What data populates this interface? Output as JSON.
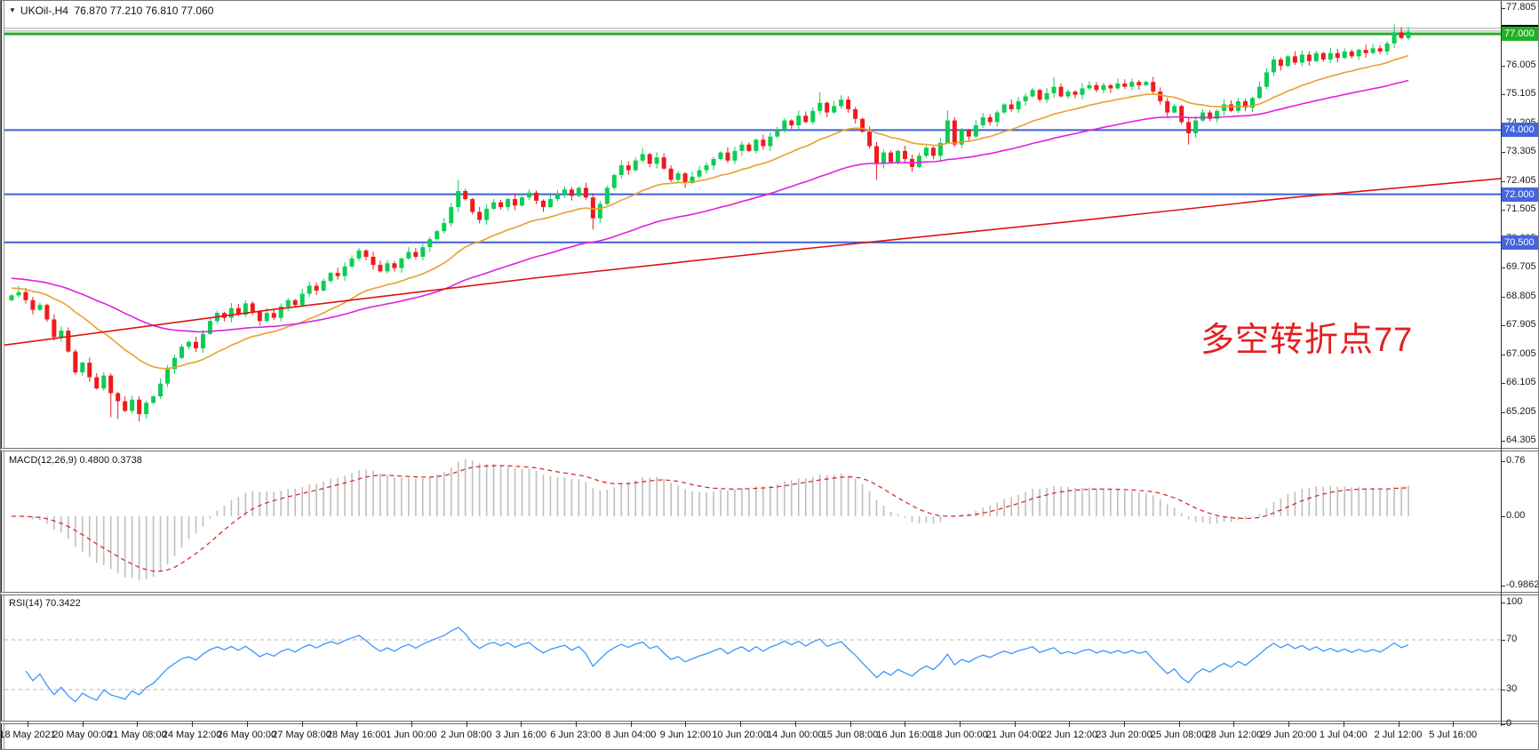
{
  "header": {
    "dropdown_icon": "▼",
    "symbol": "UKOil-,H4",
    "ohlc": "76.870 77.210 76.810 77.060"
  },
  "annotation": {
    "text": "多空转折点77",
    "color": "#e32020"
  },
  "price_axis": {
    "labels": [
      "77.805",
      "76.905",
      "76.005",
      "75.105",
      "74.205",
      "73.305",
      "72.405",
      "71.505",
      "70.605",
      "69.705",
      "68.805",
      "67.905",
      "67.005",
      "66.105",
      "65.205",
      "64.305"
    ]
  },
  "time_axis": {
    "labels": [
      "18 May 2021",
      "20 May 00:00",
      "21 May 08:00",
      "24 May 12:00",
      "26 May 00:00",
      "27 May 08:00",
      "28 May 16:00",
      "1 Jun 00:00",
      "2 Jun 08:00",
      "3 Jun 16:00",
      "6 Jun 23:00",
      "8 Jun 04:00",
      "9 Jun 12:00",
      "10 Jun 20:00",
      "14 Jun 00:00",
      "15 Jun 08:00",
      "16 Jun 16:00",
      "18 Jun 00:00",
      "21 Jun 04:00",
      "22 Jun 12:00",
      "23 Jun 20:00",
      "25 Jun 08:00",
      "28 Jun 12:00",
      "29 Jun 20:00",
      "1 Jul 04:00",
      "2 Jul 12:00",
      "5 Jul 16:00"
    ]
  },
  "macd_panel": {
    "label": "MACD(12,26,9) 0.4800 0.3738",
    "fast": 12,
    "slow": 26,
    "signal": 9,
    "axis": [
      {
        "text": "0.76",
        "value": 0.76
      },
      {
        "text": "0.00",
        "value": 0.0
      },
      {
        "text": "-0.9862",
        "value": -0.9862
      }
    ],
    "hist_color": "#bfbfbf",
    "signal_color": "#d42020"
  },
  "rsi_panel": {
    "label": "RSI(14) 70.3422",
    "period": 14,
    "axis": [
      {
        "text": "100",
        "value": 100
      },
      {
        "text": "70",
        "value": 70
      },
      {
        "text": "30",
        "value": 30
      },
      {
        "text": "0",
        "value": 2
      }
    ],
    "levels": [
      70,
      30
    ],
    "line_color": "#3b96ff",
    "level_color": "#b5b5b5"
  },
  "chart_data": {
    "type": "candlestick",
    "symbol": "UKOil-",
    "timeframe": "H4",
    "title": "UKOil- H4 candlestick chart with MA lines, MACD(12,26,9) and RSI(14)",
    "price_range": [
      64.305,
      77.805
    ],
    "up_color": "#0ccd54",
    "down_color": "#ee1b1b",
    "first_open": 68.7,
    "closes": [
      68.85,
      68.95,
      68.7,
      68.4,
      68.55,
      68.1,
      67.55,
      67.75,
      67.1,
      66.45,
      66.75,
      66.3,
      65.95,
      66.35,
      65.8,
      65.55,
      65.25,
      65.6,
      65.15,
      65.5,
      65.7,
      66.1,
      66.55,
      66.9,
      67.25,
      67.4,
      67.2,
      67.65,
      68.05,
      68.3,
      68.15,
      68.45,
      68.25,
      68.6,
      68.35,
      68.05,
      68.3,
      68.15,
      68.5,
      68.7,
      68.55,
      68.9,
      69.15,
      69.0,
      69.3,
      69.55,
      69.45,
      69.75,
      70.0,
      70.25,
      70.05,
      69.8,
      69.6,
      69.85,
      69.7,
      70.0,
      70.2,
      70.05,
      70.35,
      70.6,
      70.85,
      71.1,
      71.6,
      72.1,
      71.85,
      71.45,
      71.2,
      71.55,
      71.75,
      71.6,
      71.85,
      71.65,
      71.9,
      72.05,
      71.8,
      71.6,
      71.85,
      72.0,
      72.15,
      71.95,
      72.2,
      71.9,
      71.25,
      71.7,
      72.2,
      72.6,
      72.9,
      72.75,
      73.05,
      73.25,
      72.95,
      73.15,
      72.8,
      72.45,
      72.65,
      72.35,
      72.55,
      72.75,
      72.9,
      73.1,
      73.3,
      73.05,
      73.35,
      73.55,
      73.35,
      73.7,
      73.5,
      73.8,
      74.0,
      74.3,
      74.15,
      74.45,
      74.25,
      74.6,
      74.85,
      74.55,
      74.75,
      74.95,
      74.65,
      74.35,
      73.95,
      73.5,
      72.95,
      73.3,
      73.0,
      73.35,
      73.1,
      72.85,
      73.2,
      73.45,
      73.2,
      73.6,
      74.3,
      73.55,
      74.0,
      73.8,
      74.15,
      74.4,
      74.25,
      74.55,
      74.8,
      74.65,
      74.9,
      75.05,
      75.25,
      74.95,
      75.15,
      75.35,
      75.05,
      75.2,
      75.1,
      75.3,
      75.4,
      75.25,
      75.4,
      75.3,
      75.45,
      75.35,
      75.5,
      75.4,
      75.5,
      75.2,
      74.9,
      74.55,
      74.75,
      74.25,
      73.9,
      74.3,
      74.55,
      74.35,
      74.6,
      74.8,
      74.6,
      74.9,
      74.7,
      75.0,
      75.35,
      75.8,
      76.2,
      76.0,
      76.3,
      76.1,
      76.35,
      76.15,
      76.4,
      76.2,
      76.4,
      76.25,
      76.45,
      76.3,
      76.5,
      76.4,
      76.55,
      76.45,
      76.7,
      77.05,
      76.87,
      77.06
    ],
    "special_wicks": {
      "1": {
        "high": 69.15
      },
      "14": {
        "low": 65.05
      },
      "15": {
        "low": 65.0
      },
      "18": {
        "low": 64.92
      },
      "63": {
        "high": 72.45
      },
      "82": {
        "low": 70.9
      },
      "89": {
        "high": 73.45
      },
      "114": {
        "high": 75.18
      },
      "122": {
        "low": 72.45
      },
      "132": {
        "high": 74.62
      },
      "147": {
        "high": 75.65
      },
      "166": {
        "low": 73.55
      },
      "195": {
        "high": 77.3
      },
      "197": {
        "high": 77.21,
        "low": 76.81
      }
    },
    "moving_averages": [
      {
        "kind": "ema",
        "period": 21,
        "seed": 69.1,
        "color": "#e8a030"
      },
      {
        "kind": "ema",
        "period": 55,
        "seed": 69.4,
        "color": "#e020e0"
      }
    ],
    "trend_line": {
      "color": "#dd1111",
      "points": [
        [
          0,
          67.3
        ],
        [
          300,
          68.4
        ],
        [
          600,
          69.4
        ],
        [
          900,
          70.3
        ],
        [
          1200,
          71.15
        ],
        [
          1450,
          71.9
        ],
        [
          1688,
          72.5
        ]
      ]
    },
    "hlines": [
      {
        "price": 77.17,
        "color": "#a8a8a8",
        "w": 1
      },
      {
        "price": 77.09,
        "color": "#a8a8a8",
        "w": 1
      },
      {
        "price": 77.0,
        "color": "#22b022",
        "w": 3
      },
      {
        "price": 74.0,
        "color": "#3c5fd7",
        "w": 2
      },
      {
        "price": 72.0,
        "color": "#3c5fd7",
        "w": 2
      },
      {
        "price": 70.5,
        "color": "#3c5fd7",
        "w": 2
      }
    ],
    "badges": [
      {
        "text": "77.060",
        "price": 77.06,
        "bg": "#000000"
      },
      {
        "text": "77.000",
        "price": 77.0,
        "bg": "#22b022"
      },
      {
        "text": "74.000",
        "price": 74.0,
        "bg": "#4365dd"
      },
      {
        "text": "72.000",
        "price": 72.0,
        "bg": "#4365dd"
      },
      {
        "text": "70.500",
        "price": 70.5,
        "bg": "#4365dd"
      }
    ]
  }
}
